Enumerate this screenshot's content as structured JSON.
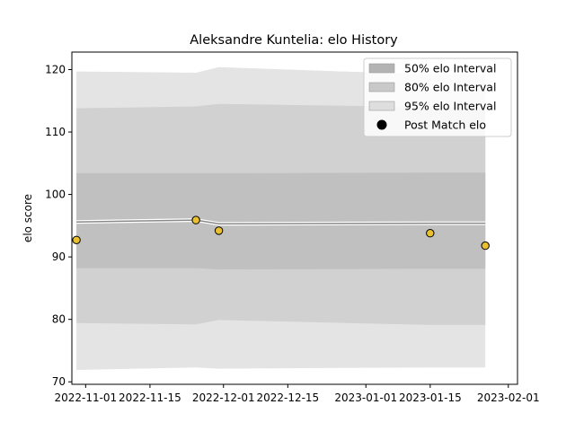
{
  "chart_data": {
    "type": "area",
    "title": "Aleksandre Kuntelia: elo History",
    "xlabel": "",
    "ylabel": "elo score",
    "x_ticks": [
      "2022-11-01",
      "2022-11-15",
      "2022-12-01",
      "2022-12-15",
      "2023-01-01",
      "2023-01-15",
      "2023-02-01"
    ],
    "y_ticks": [
      70,
      80,
      90,
      100,
      110,
      120
    ],
    "xlim": [
      "2022-10-29",
      "2023-02-03"
    ],
    "ylim": [
      69.6,
      122.8
    ],
    "grid": false,
    "legend_position": "top-right",
    "dates": [
      "2022-10-30",
      "2022-11-25",
      "2022-11-30",
      "2023-01-15",
      "2023-01-27"
    ],
    "mean": [
      95.6,
      95.9,
      95.3,
      95.4,
      95.4
    ],
    "intervals": [
      {
        "name": "95% elo Interval",
        "color": "#e4e4e4",
        "lower": [
          71.9,
          72.3,
          72.1,
          72.3,
          72.3
        ],
        "upper": [
          119.7,
          119.5,
          120.4,
          119.2,
          119.2
        ]
      },
      {
        "name": "80% elo Interval",
        "color": "#d1d1d1",
        "lower": [
          79.4,
          79.2,
          79.9,
          79.1,
          79.1
        ],
        "upper": [
          113.8,
          114.1,
          114.5,
          114.0,
          114.0
        ]
      },
      {
        "name": "50% elo Interval",
        "color": "#c0c0c0",
        "lower": [
          88.2,
          88.2,
          88.0,
          88.1,
          88.1
        ],
        "upper": [
          103.4,
          103.4,
          103.4,
          103.5,
          103.5
        ]
      }
    ],
    "points": {
      "name": "Post Match elo",
      "color": "#e8c030",
      "edge_color": "#000000",
      "dates": [
        "2022-10-30",
        "2022-11-25",
        "2022-11-30",
        "2023-01-15",
        "2023-01-27"
      ],
      "values": [
        92.7,
        95.9,
        94.2,
        93.8,
        91.8
      ]
    },
    "legend": [
      "50% elo Interval",
      "80% elo Interval",
      "95% elo Interval",
      "Post Match elo"
    ],
    "legend_swatches": [
      "#b3b3b3",
      "#c9c9c9",
      "#dedede",
      "#000000"
    ]
  }
}
